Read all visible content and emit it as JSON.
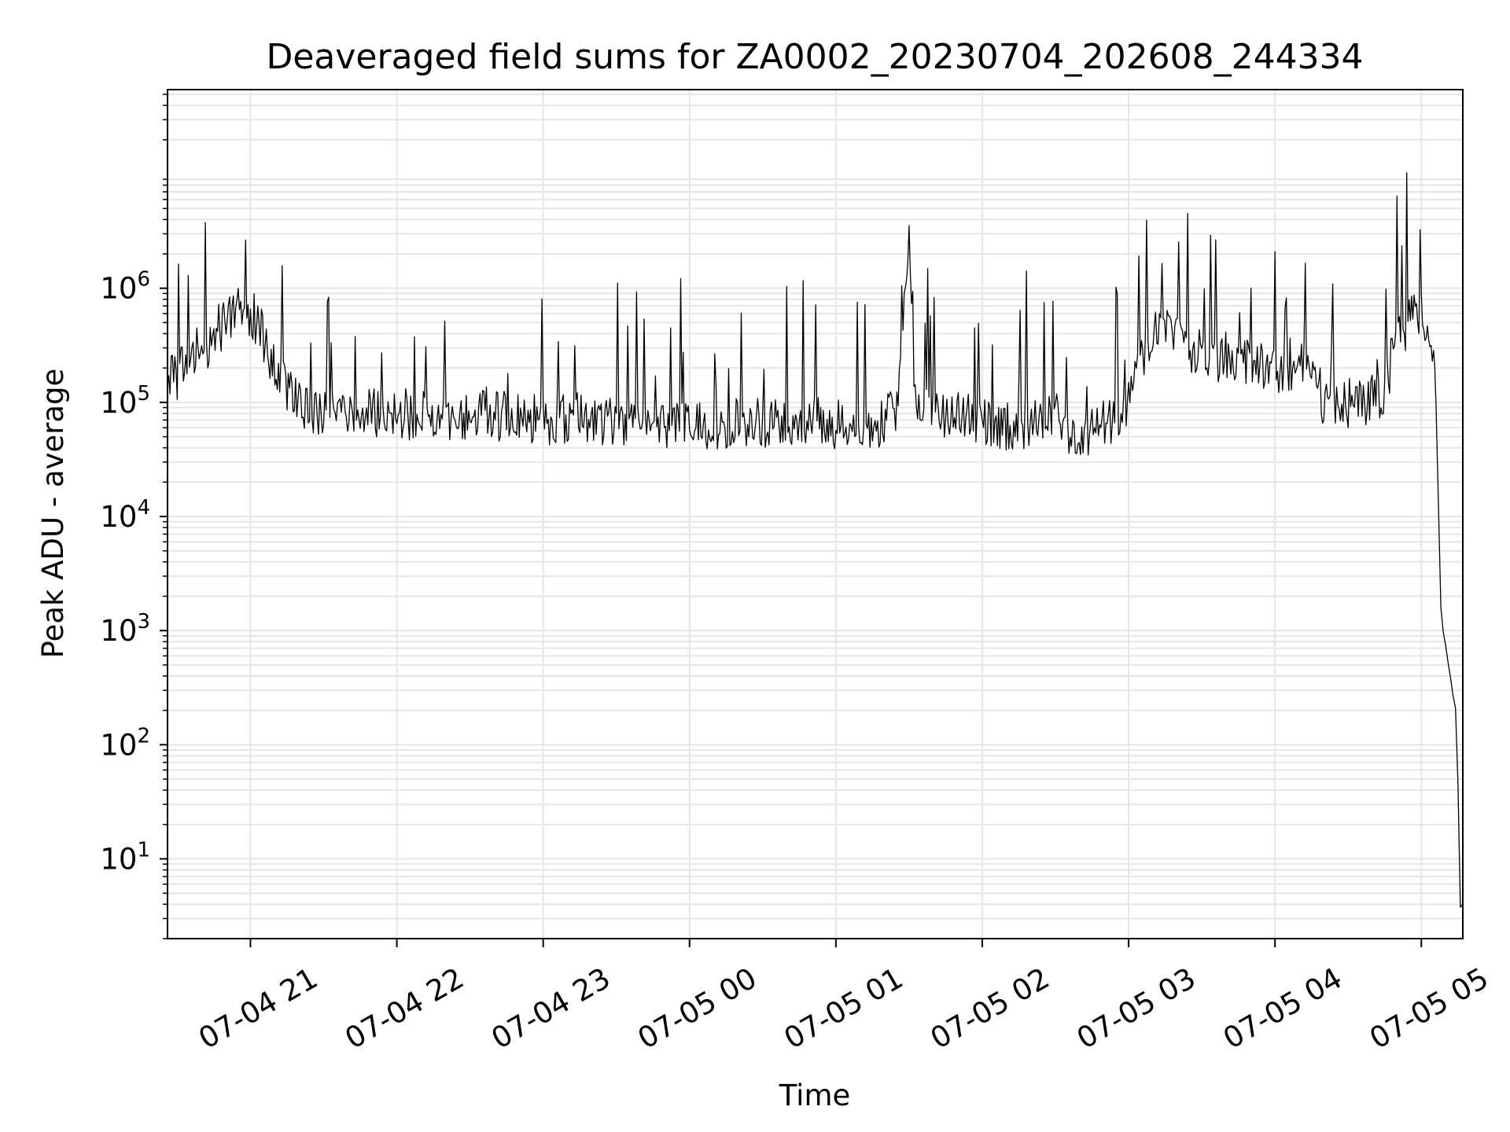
{
  "chart_data": {
    "type": "line",
    "title": "Deaveraged field sums for ZA0002_20230704_202608_244334",
    "xlabel": "Time",
    "ylabel": "Peak ADU - average",
    "yscale": "log",
    "grid": true,
    "grid_minor": true,
    "line_color": "#000000",
    "grid_color": "#e6e6e6",
    "xlim": [
      "2023-07-04 20:26",
      "2023-07-05 05:17"
    ],
    "ylim": [
      2,
      55000000
    ],
    "x_ticks": [
      {
        "label": "07-04 21",
        "value": "2023-07-04 21:00"
      },
      {
        "label": "07-04 22",
        "value": "2023-07-04 22:00"
      },
      {
        "label": "07-04 23",
        "value": "2023-07-04 23:00"
      },
      {
        "label": "07-05 00",
        "value": "2023-07-05 00:00"
      },
      {
        "label": "07-05 01",
        "value": "2023-07-05 01:00"
      },
      {
        "label": "07-05 02",
        "value": "2023-07-05 02:00"
      },
      {
        "label": "07-05 03",
        "value": "2023-07-05 03:00"
      },
      {
        "label": "07-05 04",
        "value": "2023-07-05 04:00"
      },
      {
        "label": "07-05 05",
        "value": "2023-07-05 05:00"
      }
    ],
    "y_ticks": [
      {
        "base": "10",
        "exp": "1",
        "value": 10
      },
      {
        "base": "10",
        "exp": "2",
        "value": 100
      },
      {
        "base": "10",
        "exp": "3",
        "value": 1000
      },
      {
        "base": "10",
        "exp": "4",
        "value": 10000
      },
      {
        "base": "10",
        "exp": "5",
        "value": 100000
      },
      {
        "base": "10",
        "exp": "6",
        "value": 1000000
      }
    ],
    "series": [
      {
        "points": [
          [
            "2023-07-04 20:26",
            200000
          ],
          [
            "2023-07-04 20:30",
            150000
          ],
          [
            "2023-07-04 20:35",
            300000
          ],
          [
            "2023-07-04 20:40",
            250000
          ],
          [
            "2023-07-04 20:45",
            400000
          ],
          [
            "2023-07-04 20:50",
            500000
          ],
          [
            "2023-07-04 20:55",
            600000
          ],
          [
            "2023-07-04 21:00",
            650000
          ],
          [
            "2023-07-04 21:05",
            400000
          ],
          [
            "2023-07-04 21:10",
            180000
          ],
          [
            "2023-07-04 21:15",
            120000
          ],
          [
            "2023-07-04 21:20",
            90000
          ],
          [
            "2023-07-04 21:30",
            80000
          ],
          [
            "2023-07-04 21:45",
            85000
          ],
          [
            "2023-07-04 22:00",
            80000
          ],
          [
            "2023-07-04 22:15",
            75000
          ],
          [
            "2023-07-04 22:30",
            80000
          ],
          [
            "2023-07-04 22:45",
            75000
          ],
          [
            "2023-07-04 23:00",
            70000
          ],
          [
            "2023-07-04 23:15",
            72000
          ],
          [
            "2023-07-04 23:30",
            70000
          ],
          [
            "2023-07-04 23:45",
            68000
          ],
          [
            "2023-07-05 00:00",
            65000
          ],
          [
            "2023-07-05 00:15",
            65000
          ],
          [
            "2023-07-05 00:30",
            65000
          ],
          [
            "2023-07-05 00:45",
            68000
          ],
          [
            "2023-07-05 01:00",
            65000
          ],
          [
            "2023-07-05 01:15",
            62000
          ],
          [
            "2023-07-05 01:25",
            80000
          ],
          [
            "2023-07-05 01:30",
            2500000
          ],
          [
            "2023-07-05 01:32",
            150000
          ],
          [
            "2023-07-05 01:35",
            80000
          ],
          [
            "2023-07-05 01:45",
            75000
          ],
          [
            "2023-07-05 02:00",
            70000
          ],
          [
            "2023-07-05 02:15",
            60000
          ],
          [
            "2023-07-05 02:30",
            90000
          ],
          [
            "2023-07-05 02:35",
            55000
          ],
          [
            "2023-07-05 02:45",
            55000
          ],
          [
            "2023-07-05 03:00",
            90000
          ],
          [
            "2023-07-05 03:10",
            450000
          ],
          [
            "2023-07-05 03:20",
            350000
          ],
          [
            "2023-07-05 03:30",
            250000
          ],
          [
            "2023-07-05 03:45",
            250000
          ],
          [
            "2023-07-05 04:00",
            200000
          ],
          [
            "2023-07-05 04:15",
            200000
          ],
          [
            "2023-07-05 04:20",
            100000
          ],
          [
            "2023-07-05 04:30",
            100000
          ],
          [
            "2023-07-05 04:45",
            110000
          ],
          [
            "2023-07-05 04:48",
            250000
          ],
          [
            "2023-07-05 04:55",
            500000
          ],
          [
            "2023-07-05 05:00",
            600000
          ],
          [
            "2023-07-05 05:04",
            400000
          ],
          [
            "2023-07-05 05:06",
            100000
          ],
          [
            "2023-07-05 05:08",
            1500
          ],
          [
            "2023-07-05 05:10",
            700
          ],
          [
            "2023-07-05 05:12",
            400
          ],
          [
            "2023-07-05 05:14",
            200
          ],
          [
            "2023-07-05 05:15",
            50
          ],
          [
            "2023-07-05 05:16",
            4
          ],
          [
            "2023-07-05 05:17",
            4
          ]
        ]
      }
    ]
  }
}
